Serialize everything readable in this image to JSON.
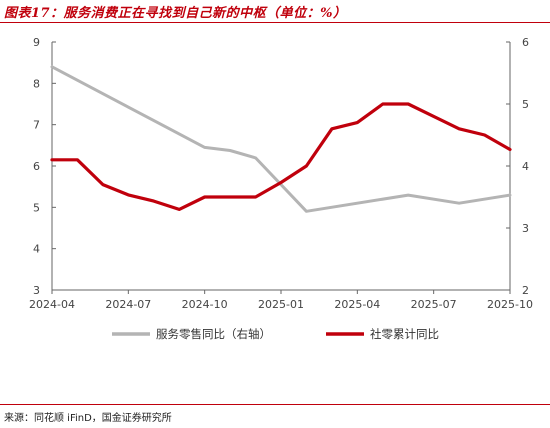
{
  "title": "图表17：服务消费正在寻找到自己新的中枢（单位：%）",
  "source": "来源：同花顺 iFinD，国金证券研究所",
  "chart_data": {
    "type": "line",
    "x": [
      "2024-04",
      "2024-05",
      "2024-06",
      "2024-07",
      "2024-08",
      "2024-09",
      "2024-10",
      "2024-11",
      "2024-12",
      "2025-01",
      "2025-02",
      "2025-03",
      "2025-04",
      "2025-05",
      "2025-06",
      "2025-07",
      "2025-08",
      "2025-09",
      "2025-10"
    ],
    "x_tick_labels": [
      "2024-04",
      "2024-07",
      "2024-10",
      "2025-01",
      "2025-04",
      "2025-07",
      "2025-10"
    ],
    "y_left_lim": [
      3,
      9
    ],
    "y_left_ticks": [
      "3",
      "4",
      "5",
      "6",
      "7",
      "8",
      "9"
    ],
    "y_right_lim": [
      2,
      6
    ],
    "y_right_ticks": [
      "2",
      "3",
      "4",
      "5",
      "6"
    ],
    "series": [
      {
        "name": "服务零售同比（右轴）",
        "axis": "right",
        "color": "#b4b4b4",
        "values": [
          5.6,
          null,
          null,
          null,
          null,
          null,
          4.3,
          4.25,
          4.13,
          null,
          3.27,
          null,
          null,
          null,
          3.53,
          null,
          3.4,
          null,
          3.53
        ]
      },
      {
        "name": "社零累计同比",
        "axis": "left",
        "color": "#c0000c",
        "values": [
          6.15,
          6.15,
          5.55,
          5.3,
          5.15,
          4.95,
          5.25,
          5.25,
          5.25,
          5.6,
          6.0,
          6.9,
          7.05,
          7.5,
          7.5,
          7.2,
          6.9,
          6.75,
          6.4
        ]
      }
    ],
    "grid": false,
    "legend_position": "bottom"
  }
}
